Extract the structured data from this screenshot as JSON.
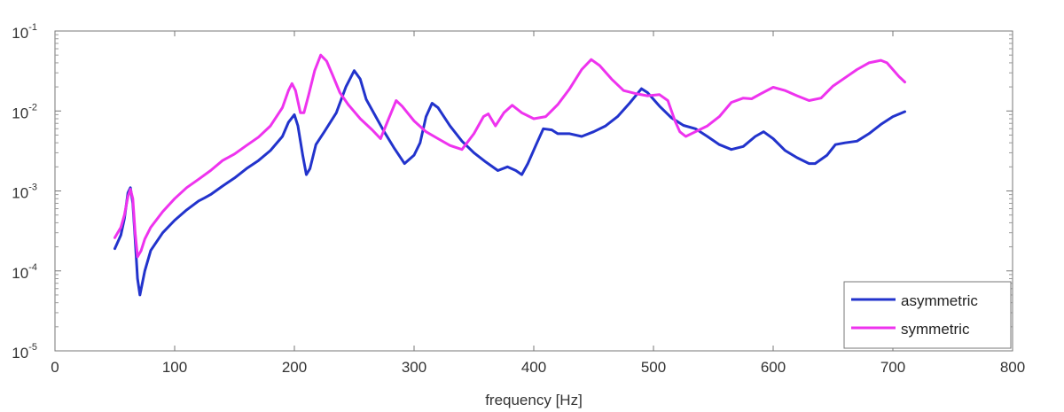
{
  "chart_data": {
    "type": "line",
    "title": "",
    "xlabel": "frequency [Hz]",
    "ylabel": "",
    "xlim": [
      0,
      800
    ],
    "ylim": [
      1e-05,
      0.1
    ],
    "yscale": "log",
    "grid": false,
    "legend_position": "bottom-right",
    "x_ticks": [
      0,
      100,
      200,
      300,
      400,
      500,
      600,
      700,
      800
    ],
    "x_tick_labels": [
      "0",
      "100",
      "200",
      "300",
      "400",
      "500",
      "600",
      "700",
      "800"
    ],
    "y_ticks": [
      1e-05,
      0.0001,
      0.001,
      0.01,
      0.1
    ],
    "y_tick_base": [
      "10",
      "10",
      "10",
      "10",
      "10"
    ],
    "y_tick_exp": [
      "-5",
      "-4",
      "-3",
      "-2",
      "-1"
    ],
    "series": [
      {
        "name": "asymmetric",
        "color": "#2233cc",
        "points": [
          [
            50,
            0.00019
          ],
          [
            55,
            0.00028
          ],
          [
            58,
            0.00045
          ],
          [
            61,
            0.00095
          ],
          [
            63,
            0.0011
          ],
          [
            65,
            0.0007
          ],
          [
            67,
            0.00025
          ],
          [
            69,
            8e-05
          ],
          [
            71,
            5e-05
          ],
          [
            75,
            0.0001
          ],
          [
            80,
            0.00018
          ],
          [
            90,
            0.0003
          ],
          [
            100,
            0.00043
          ],
          [
            110,
            0.00058
          ],
          [
            120,
            0.00075
          ],
          [
            125,
            0.00082
          ],
          [
            130,
            0.0009
          ],
          [
            140,
            0.00115
          ],
          [
            150,
            0.00145
          ],
          [
            160,
            0.0019
          ],
          [
            170,
            0.0024
          ],
          [
            180,
            0.0032
          ],
          [
            190,
            0.0048
          ],
          [
            195,
            0.0072
          ],
          [
            200,
            0.009
          ],
          [
            203,
            0.0065
          ],
          [
            207,
            0.0028
          ],
          [
            210,
            0.0016
          ],
          [
            213,
            0.0019
          ],
          [
            218,
            0.0038
          ],
          [
            225,
            0.0055
          ],
          [
            235,
            0.0095
          ],
          [
            243,
            0.02
          ],
          [
            250,
            0.032
          ],
          [
            255,
            0.025
          ],
          [
            260,
            0.014
          ],
          [
            268,
            0.0085
          ],
          [
            275,
            0.0055
          ],
          [
            283,
            0.0035
          ],
          [
            292,
            0.0022
          ],
          [
            300,
            0.0028
          ],
          [
            305,
            0.004
          ],
          [
            310,
            0.0085
          ],
          [
            315,
            0.0125
          ],
          [
            320,
            0.011
          ],
          [
            330,
            0.0065
          ],
          [
            340,
            0.0042
          ],
          [
            350,
            0.003
          ],
          [
            360,
            0.0023
          ],
          [
            370,
            0.0018
          ],
          [
            378,
            0.002
          ],
          [
            385,
            0.0018
          ],
          [
            390,
            0.0016
          ],
          [
            395,
            0.0022
          ],
          [
            402,
            0.0038
          ],
          [
            408,
            0.006
          ],
          [
            415,
            0.0058
          ],
          [
            420,
            0.0052
          ],
          [
            430,
            0.0052
          ],
          [
            440,
            0.0048
          ],
          [
            450,
            0.0055
          ],
          [
            460,
            0.0065
          ],
          [
            470,
            0.0085
          ],
          [
            480,
            0.0125
          ],
          [
            490,
            0.019
          ],
          [
            495,
            0.017
          ],
          [
            505,
            0.0115
          ],
          [
            515,
            0.0082
          ],
          [
            525,
            0.0066
          ],
          [
            535,
            0.006
          ],
          [
            545,
            0.0048
          ],
          [
            555,
            0.0038
          ],
          [
            565,
            0.0033
          ],
          [
            575,
            0.0036
          ],
          [
            585,
            0.0048
          ],
          [
            592,
            0.0055
          ],
          [
            600,
            0.0045
          ],
          [
            610,
            0.0032
          ],
          [
            620,
            0.0026
          ],
          [
            630,
            0.0022
          ],
          [
            635,
            0.0022
          ],
          [
            645,
            0.0028
          ],
          [
            652,
            0.0038
          ],
          [
            660,
            0.004
          ],
          [
            670,
            0.0042
          ],
          [
            680,
            0.0052
          ],
          [
            690,
            0.0068
          ],
          [
            700,
            0.0085
          ],
          [
            710,
            0.0098
          ]
        ]
      },
      {
        "name": "symmetric",
        "color": "#ee33ee",
        "points": [
          [
            50,
            0.00026
          ],
          [
            55,
            0.00035
          ],
          [
            58,
            0.0005
          ],
          [
            61,
            0.00085
          ],
          [
            63,
            0.00105
          ],
          [
            65,
            0.0008
          ],
          [
            67,
            0.0003
          ],
          [
            69,
            0.00015
          ],
          [
            72,
            0.00018
          ],
          [
            75,
            0.00025
          ],
          [
            80,
            0.00035
          ],
          [
            90,
            0.00055
          ],
          [
            100,
            0.0008
          ],
          [
            110,
            0.0011
          ],
          [
            120,
            0.0014
          ],
          [
            130,
            0.0018
          ],
          [
            140,
            0.0024
          ],
          [
            150,
            0.0029
          ],
          [
            160,
            0.0037
          ],
          [
            170,
            0.0047
          ],
          [
            180,
            0.0065
          ],
          [
            190,
            0.011
          ],
          [
            195,
            0.018
          ],
          [
            198,
            0.022
          ],
          [
            201,
            0.018
          ],
          [
            205,
            0.0095
          ],
          [
            208,
            0.0095
          ],
          [
            212,
            0.016
          ],
          [
            217,
            0.032
          ],
          [
            222,
            0.05
          ],
          [
            227,
            0.042
          ],
          [
            232,
            0.028
          ],
          [
            238,
            0.017
          ],
          [
            245,
            0.012
          ],
          [
            255,
            0.008
          ],
          [
            265,
            0.0058
          ],
          [
            272,
            0.0045
          ],
          [
            278,
            0.0075
          ],
          [
            285,
            0.0135
          ],
          [
            290,
            0.0115
          ],
          [
            300,
            0.0075
          ],
          [
            310,
            0.0055
          ],
          [
            320,
            0.0045
          ],
          [
            330,
            0.0037
          ],
          [
            340,
            0.0033
          ],
          [
            350,
            0.0052
          ],
          [
            358,
            0.0085
          ],
          [
            362,
            0.0092
          ],
          [
            368,
            0.0065
          ],
          [
            375,
            0.0095
          ],
          [
            382,
            0.0118
          ],
          [
            390,
            0.0095
          ],
          [
            400,
            0.008
          ],
          [
            410,
            0.0085
          ],
          [
            420,
            0.012
          ],
          [
            430,
            0.019
          ],
          [
            440,
            0.033
          ],
          [
            448,
            0.044
          ],
          [
            455,
            0.037
          ],
          [
            465,
            0.025
          ],
          [
            475,
            0.018
          ],
          [
            485,
            0.0165
          ],
          [
            495,
            0.0155
          ],
          [
            505,
            0.016
          ],
          [
            512,
            0.0135
          ],
          [
            518,
            0.0075
          ],
          [
            522,
            0.0055
          ],
          [
            527,
            0.0048
          ],
          [
            535,
            0.0055
          ],
          [
            545,
            0.0065
          ],
          [
            555,
            0.0085
          ],
          [
            565,
            0.0128
          ],
          [
            575,
            0.0145
          ],
          [
            582,
            0.0142
          ],
          [
            590,
            0.0165
          ],
          [
            600,
            0.0198
          ],
          [
            610,
            0.018
          ],
          [
            620,
            0.0155
          ],
          [
            630,
            0.0135
          ],
          [
            640,
            0.0145
          ],
          [
            650,
            0.0205
          ],
          [
            660,
            0.026
          ],
          [
            670,
            0.033
          ],
          [
            680,
            0.04
          ],
          [
            690,
            0.043
          ],
          [
            695,
            0.04
          ],
          [
            700,
            0.033
          ],
          [
            705,
            0.027
          ],
          [
            710,
            0.023
          ]
        ]
      }
    ]
  }
}
